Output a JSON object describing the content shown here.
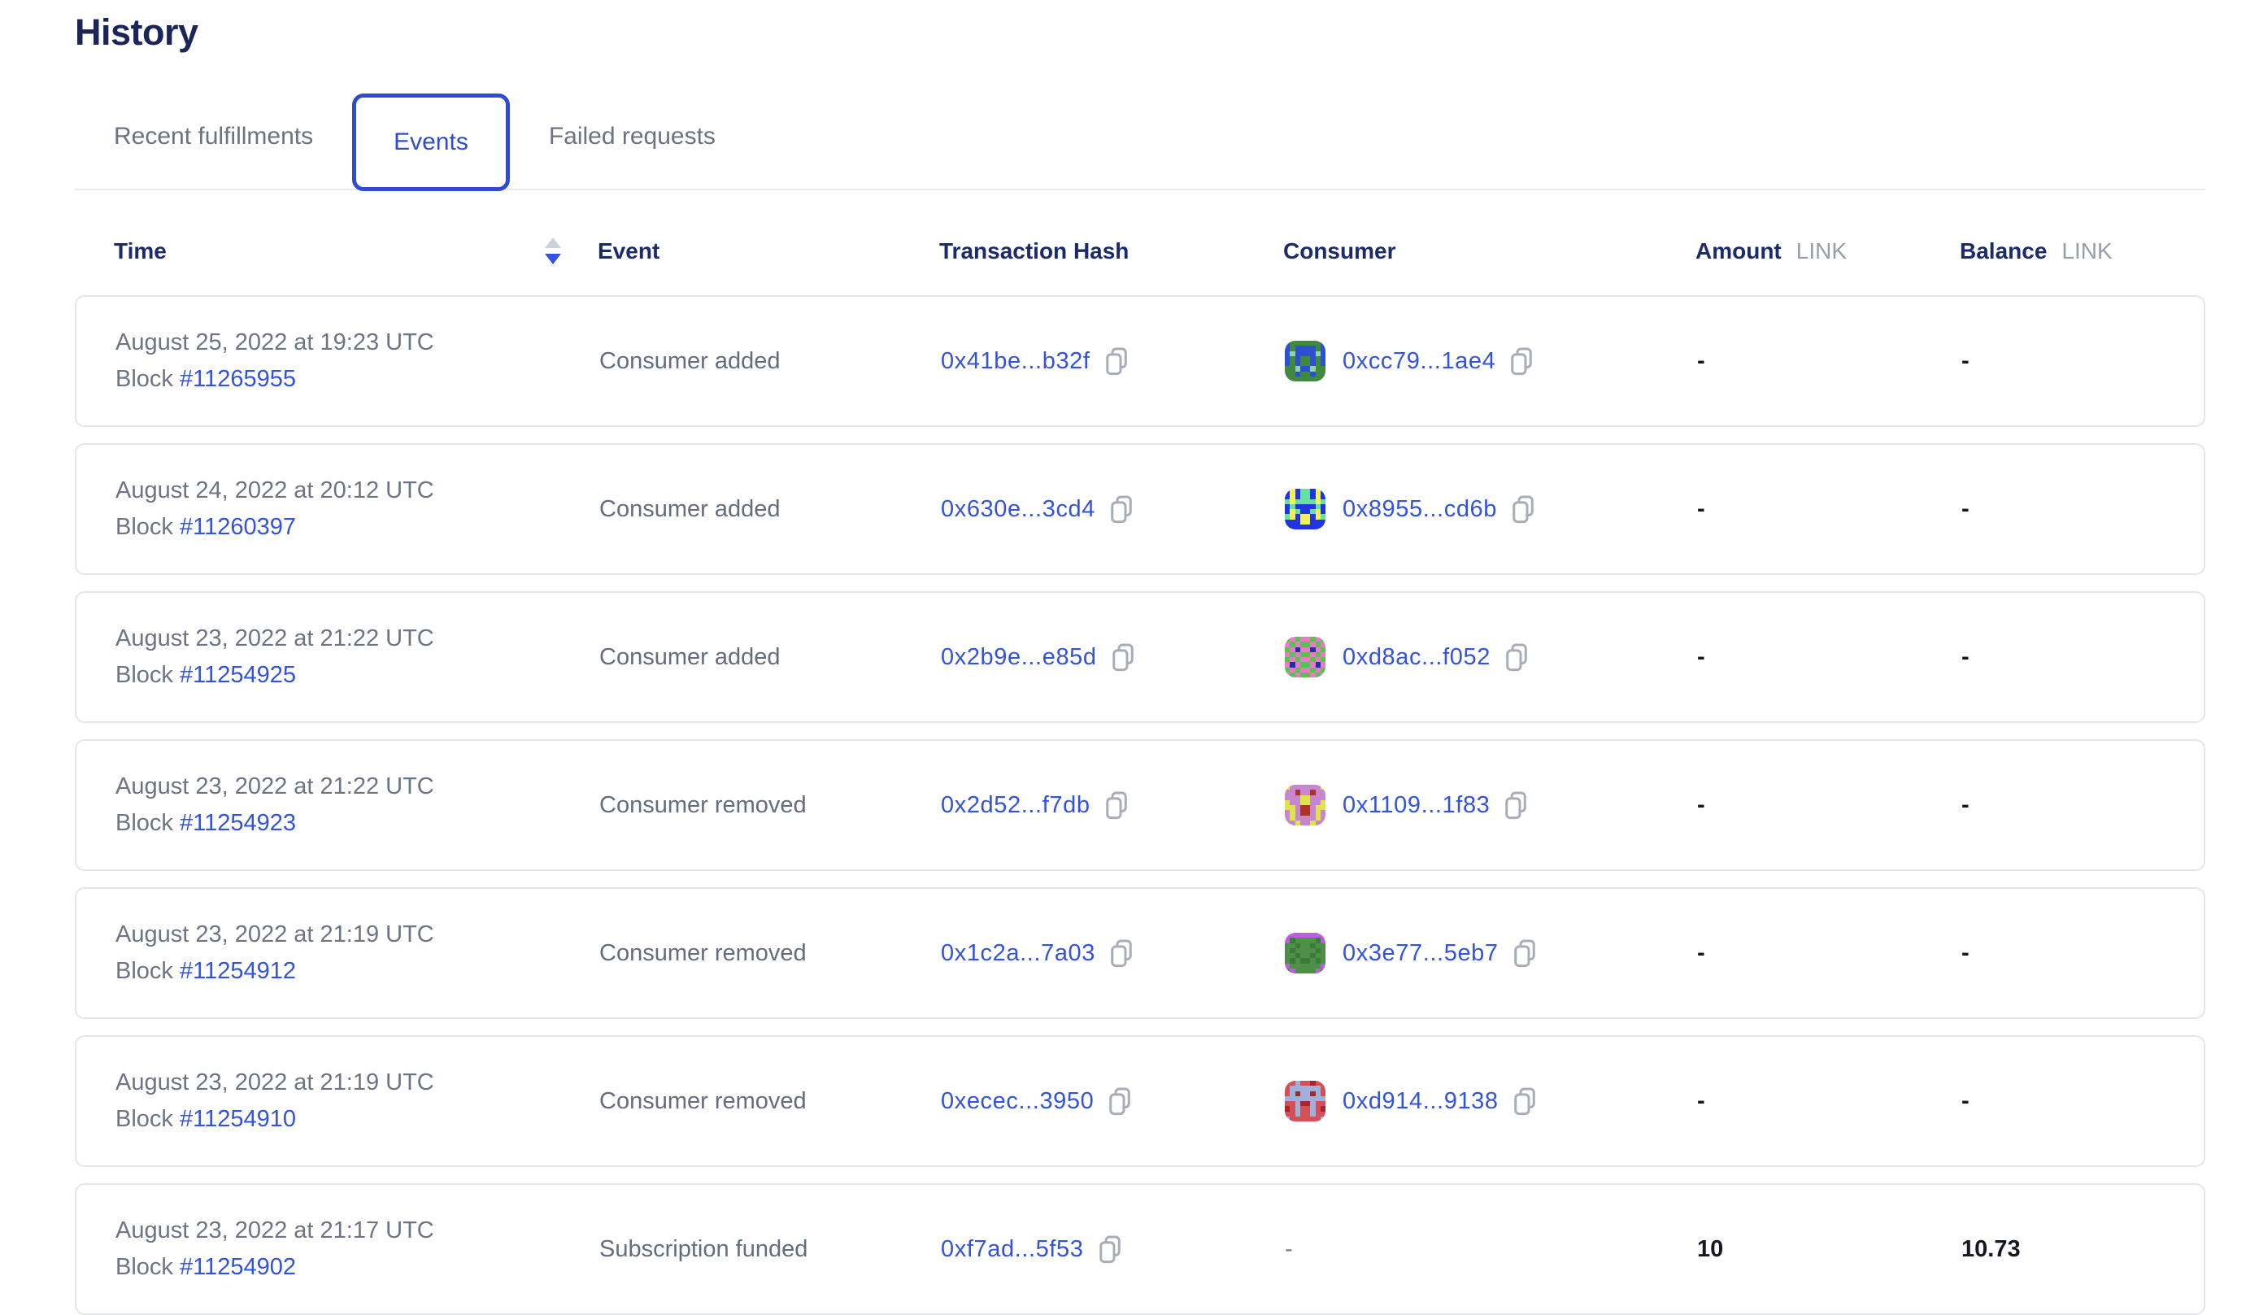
{
  "page": {
    "title": "History"
  },
  "tabs": [
    {
      "label": "Recent fulfillments",
      "active": false
    },
    {
      "label": "Events",
      "active": true
    },
    {
      "label": "Failed requests",
      "active": false
    }
  ],
  "table": {
    "labels": {
      "block": "Block"
    },
    "columns": {
      "time": "Time",
      "event": "Event",
      "tx": "Transaction Hash",
      "consumer": "Consumer",
      "amount": "Amount",
      "amount_unit": "LINK",
      "balance": "Balance",
      "balance_unit": "LINK"
    },
    "sort": {
      "column": "time",
      "direction": "desc"
    },
    "rows": [
      {
        "date": "August 25, 2022 at 19:23 UTC",
        "block": "#11265955",
        "event": "Consumer added",
        "tx": "0x41be...b32f",
        "consumer": "0xcc79...1ae4",
        "amount": "-",
        "balance": "-",
        "icon": {
          "palette": [
            "#3f8a3e",
            "#2f4fd3",
            "#8ed3ad"
          ],
          "grid": [
            [
              1,
              0,
              0,
              0,
              0,
              0,
              0,
              1
            ],
            [
              1,
              0,
              1,
              1,
              1,
              1,
              0,
              1
            ],
            [
              1,
              2,
              1,
              1,
              1,
              1,
              2,
              1
            ],
            [
              1,
              0,
              1,
              0,
              0,
              1,
              0,
              1
            ],
            [
              1,
              0,
              1,
              0,
              0,
              1,
              0,
              1
            ],
            [
              0,
              0,
              2,
              1,
              1,
              2,
              0,
              0
            ],
            [
              0,
              0,
              1,
              0,
              0,
              1,
              0,
              0
            ],
            [
              0,
              0,
              0,
              0,
              0,
              0,
              0,
              0
            ]
          ]
        }
      },
      {
        "date": "August 24, 2022 at 20:12 UTC",
        "block": "#11260397",
        "event": "Consumer added",
        "tx": "0x630e...3cd4",
        "consumer": "0x8955...cd6b",
        "amount": "-",
        "balance": "-",
        "icon": {
          "palette": [
            "#2433e0",
            "#eef25e",
            "#66e0a3"
          ],
          "grid": [
            [
              0,
              1,
              0,
              2,
              2,
              0,
              1,
              0
            ],
            [
              0,
              1,
              0,
              2,
              2,
              0,
              1,
              0
            ],
            [
              2,
              1,
              2,
              2,
              2,
              2,
              1,
              2
            ],
            [
              0,
              2,
              0,
              0,
              0,
              0,
              2,
              0
            ],
            [
              0,
              1,
              2,
              0,
              0,
              2,
              1,
              0
            ],
            [
              2,
              1,
              0,
              1,
              1,
              0,
              1,
              2
            ],
            [
              0,
              0,
              0,
              1,
              1,
              0,
              0,
              0
            ],
            [
              0,
              0,
              0,
              0,
              0,
              0,
              0,
              0
            ]
          ]
        }
      },
      {
        "date": "August 23, 2022 at 21:22 UTC",
        "block": "#11254925",
        "event": "Consumer added",
        "tx": "0x2b9e...e85d",
        "consumer": "0xd8ac...f052",
        "amount": "-",
        "balance": "-",
        "icon": {
          "palette": [
            "#56c34f",
            "#e97bc7",
            "#232f9b"
          ],
          "grid": [
            [
              0,
              1,
              0,
              1,
              1,
              0,
              1,
              0
            ],
            [
              1,
              0,
              1,
              0,
              0,
              1,
              0,
              1
            ],
            [
              0,
              1,
              2,
              1,
              1,
              2,
              1,
              0
            ],
            [
              1,
              0,
              1,
              0,
              0,
              1,
              0,
              1
            ],
            [
              0,
              1,
              0,
              1,
              1,
              0,
              1,
              0
            ],
            [
              1,
              2,
              1,
              0,
              0,
              1,
              2,
              1
            ],
            [
              0,
              1,
              0,
              1,
              1,
              0,
              1,
              0
            ],
            [
              1,
              0,
              1,
              0,
              0,
              1,
              0,
              1
            ]
          ]
        }
      },
      {
        "date": "August 23, 2022 at 21:22 UTC",
        "block": "#11254923",
        "event": "Consumer removed",
        "tx": "0x2d52...f7db",
        "consumer": "0x1109...1f83",
        "amount": "-",
        "balance": "-",
        "icon": {
          "palette": [
            "#c787cf",
            "#e0e34e",
            "#ae3226"
          ],
          "grid": [
            [
              1,
              0,
              0,
              0,
              0,
              0,
              0,
              1
            ],
            [
              0,
              0,
              2,
              0,
              0,
              2,
              0,
              0
            ],
            [
              0,
              0,
              0,
              1,
              1,
              0,
              0,
              0
            ],
            [
              1,
              0,
              0,
              1,
              1,
              0,
              0,
              1
            ],
            [
              1,
              1,
              0,
              2,
              2,
              0,
              1,
              1
            ],
            [
              0,
              1,
              0,
              2,
              2,
              0,
              1,
              0
            ],
            [
              0,
              1,
              0,
              0,
              0,
              0,
              1,
              0
            ],
            [
              0,
              0,
              1,
              0,
              0,
              1,
              0,
              0
            ]
          ]
        }
      },
      {
        "date": "August 23, 2022 at 21:19 UTC",
        "block": "#11254912",
        "event": "Consumer removed",
        "tx": "0x1c2a...7a03",
        "consumer": "0x3e77...5eb7",
        "amount": "-",
        "balance": "-",
        "icon": {
          "palette": [
            "#4f8f4a",
            "#b85fe0",
            "#3c7a3a"
          ],
          "grid": [
            [
              1,
              1,
              1,
              1,
              1,
              1,
              1,
              1
            ],
            [
              1,
              2,
              0,
              0,
              0,
              0,
              2,
              1
            ],
            [
              0,
              0,
              2,
              0,
              0,
              2,
              0,
              0
            ],
            [
              0,
              2,
              0,
              0,
              0,
              0,
              2,
              0
            ],
            [
              0,
              0,
              2,
              0,
              0,
              2,
              0,
              0
            ],
            [
              0,
              2,
              0,
              2,
              2,
              0,
              2,
              0
            ],
            [
              1,
              0,
              0,
              0,
              0,
              0,
              0,
              1
            ],
            [
              0,
              1,
              0,
              0,
              0,
              0,
              1,
              0
            ]
          ]
        }
      },
      {
        "date": "August 23, 2022 at 21:19 UTC",
        "block": "#11254910",
        "event": "Consumer removed",
        "tx": "0xecec...3950",
        "consumer": "0xd914...9138",
        "amount": "-",
        "balance": "-",
        "icon": {
          "palette": [
            "#d25056",
            "#9fb1da",
            "#a5262c"
          ],
          "grid": [
            [
              0,
              0,
              1,
              0,
              0,
              2,
              0,
              0
            ],
            [
              0,
              1,
              1,
              1,
              1,
              1,
              1,
              0
            ],
            [
              0,
              1,
              2,
              1,
              1,
              2,
              1,
              0
            ],
            [
              1,
              1,
              1,
              1,
              1,
              1,
              1,
              1
            ],
            [
              0,
              0,
              1,
              2,
              2,
              1,
              0,
              0
            ],
            [
              2,
              0,
              1,
              0,
              0,
              1,
              0,
              2
            ],
            [
              0,
              0,
              1,
              0,
              0,
              1,
              0,
              0
            ],
            [
              1,
              0,
              0,
              0,
              0,
              0,
              0,
              1
            ]
          ]
        }
      },
      {
        "date": "August 23, 2022 at 21:17 UTC",
        "block": "#11254902",
        "event": "Subscription funded",
        "tx": "0xf7ad...5f53",
        "consumer": "-",
        "amount": "10",
        "balance": "10.73",
        "icon": null
      }
    ]
  },
  "colors": {
    "accent_blue": "#3252e0",
    "navy": "#1b2a6b",
    "tab_active_border": "#2e4bd2"
  }
}
